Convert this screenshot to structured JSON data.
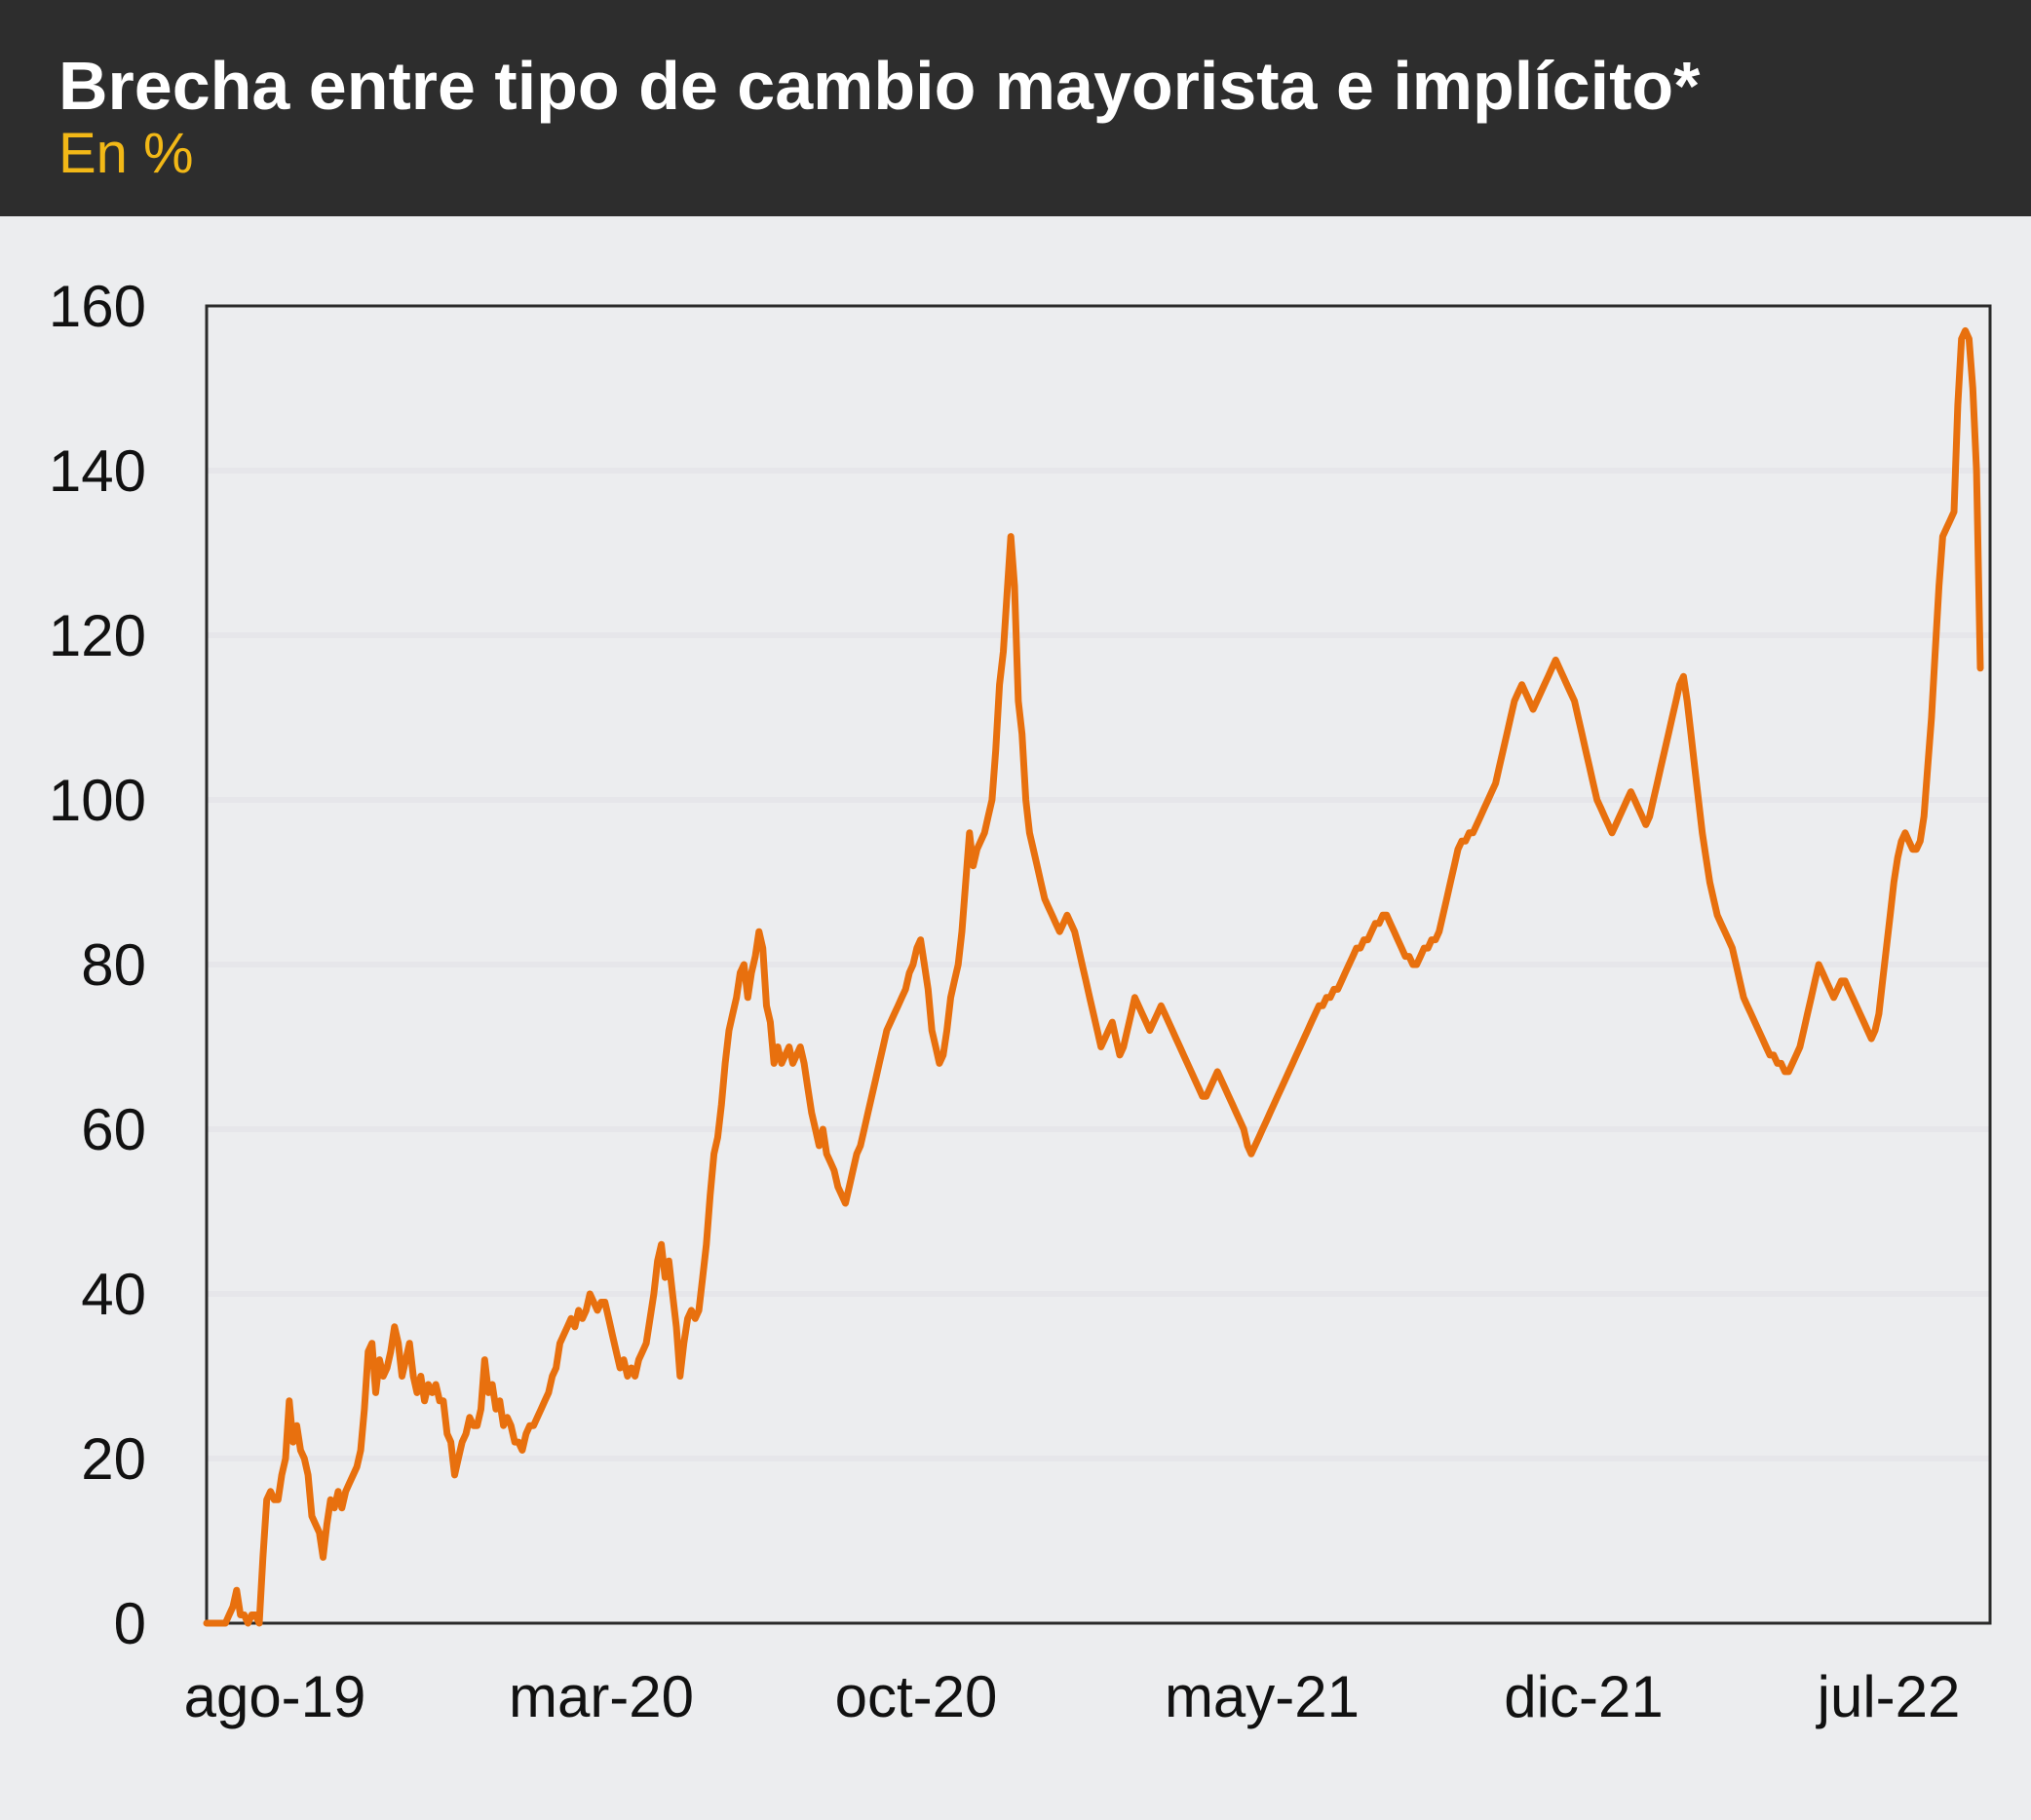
{
  "header": {
    "title": "Brecha entre tipo de cambio mayorista e implícito*",
    "subtitle": "En %"
  },
  "colors": {
    "line": "#e8700e",
    "header_bg": "#2d2d2d",
    "subtitle": "#f2b817",
    "background": "#ecedef",
    "grid": "#e6e6ea"
  },
  "chart_data": {
    "type": "line",
    "title": "Brecha entre tipo de cambio mayorista e implícito*",
    "subtitle": "En %",
    "xlabel": "",
    "ylabel": "",
    "xticks": [
      "ago-19",
      "mar-20",
      "oct-20",
      "may-21",
      "dic-21",
      "jul-22"
    ],
    "yticks": [
      0,
      20,
      40,
      60,
      80,
      100,
      120,
      140,
      160
    ],
    "ylim": [
      0,
      160
    ],
    "grid": "horizontal",
    "legend": "none",
    "series": [
      {
        "values": [
          0,
          0,
          0,
          0,
          0,
          0,
          1,
          2,
          4,
          1,
          1,
          0,
          1,
          1,
          0,
          8,
          15,
          16,
          15,
          15,
          18,
          20,
          27,
          22,
          24,
          21,
          20,
          18,
          13,
          12,
          11,
          8,
          12,
          15,
          14,
          16,
          14,
          16,
          17,
          18,
          19,
          21,
          26,
          33,
          34,
          28,
          32,
          30,
          31,
          33,
          36,
          34,
          30,
          32,
          34,
          30,
          28,
          30,
          27,
          29,
          28,
          29,
          27,
          27,
          23,
          22,
          18,
          20,
          22,
          23,
          25,
          24,
          24,
          26,
          32,
          28,
          29,
          26,
          27,
          24,
          25,
          24,
          22,
          22,
          21,
          23,
          24,
          24,
          25,
          26,
          27,
          28,
          30,
          31,
          34,
          35,
          36,
          37,
          36,
          38,
          37,
          38,
          40,
          39,
          38,
          39,
          39,
          37,
          35,
          33,
          31,
          32,
          30,
          31,
          30,
          32,
          33,
          34,
          37,
          40,
          44,
          46,
          42,
          44,
          40,
          36,
          30,
          34,
          37,
          38,
          37,
          38,
          42,
          46,
          52,
          57,
          59,
          63,
          68,
          72,
          74,
          76,
          79,
          80,
          76,
          79,
          81,
          84,
          82,
          75,
          73,
          68,
          70,
          68,
          69,
          70,
          68,
          69,
          70,
          68,
          65,
          62,
          60,
          58,
          60,
          57,
          56,
          55,
          53,
          52,
          51,
          53,
          55,
          57,
          58,
          60,
          62,
          64,
          66,
          68,
          70,
          72,
          73,
          74,
          75,
          76,
          77,
          79,
          80,
          82,
          83,
          80,
          77,
          72,
          70,
          68,
          69,
          72,
          76,
          78,
          80,
          84,
          90,
          96,
          92,
          94,
          95,
          96,
          98,
          100,
          106,
          114,
          118,
          125,
          132,
          126,
          112,
          108,
          100,
          96,
          94,
          92,
          90,
          88,
          87,
          86,
          85,
          84,
          85,
          86,
          85,
          84,
          82,
          80,
          78,
          76,
          74,
          72,
          70,
          71,
          72,
          73,
          71,
          69,
          70,
          72,
          74,
          76,
          75,
          74,
          73,
          72,
          73,
          74,
          75,
          74,
          73,
          72,
          71,
          70,
          69,
          68,
          67,
          66,
          65,
          64,
          64,
          65,
          66,
          67,
          66,
          65,
          64,
          63,
          62,
          61,
          60,
          58,
          57,
          58,
          59,
          60,
          61,
          62,
          63,
          64,
          65,
          66,
          67,
          68,
          69,
          70,
          71,
          72,
          73,
          74,
          75,
          75,
          76,
          76,
          77,
          77,
          78,
          79,
          80,
          81,
          82,
          82,
          83,
          83,
          84,
          85,
          85,
          86,
          86,
          85,
          84,
          83,
          82,
          81,
          81,
          80,
          80,
          81,
          82,
          82,
          83,
          83,
          84,
          86,
          88,
          90,
          92,
          94,
          95,
          95,
          96,
          96,
          97,
          98,
          99,
          100,
          101,
          102,
          104,
          106,
          108,
          110,
          112,
          113,
          114,
          113,
          112,
          111,
          112,
          113,
          114,
          115,
          116,
          117,
          116,
          115,
          114,
          113,
          112,
          110,
          108,
          106,
          104,
          102,
          100,
          99,
          98,
          97,
          96,
          97,
          98,
          99,
          100,
          101,
          100,
          99,
          98,
          97,
          98,
          100,
          102,
          104,
          106,
          108,
          110,
          112,
          114,
          115,
          112,
          108,
          104,
          100,
          96,
          93,
          90,
          88,
          86,
          85,
          84,
          83,
          82,
          80,
          78,
          76,
          75,
          74,
          73,
          72,
          71,
          70,
          69,
          69,
          68,
          68,
          67,
          67,
          68,
          69,
          70,
          72,
          74,
          76,
          78,
          80,
          79,
          78,
          77,
          76,
          77,
          78,
          78,
          77,
          76,
          75,
          74,
          73,
          72,
          71,
          72,
          74,
          78,
          82,
          86,
          90,
          93,
          95,
          96,
          95,
          94,
          94,
          95,
          98,
          104,
          110,
          118,
          126,
          132,
          133,
          134,
          135,
          148,
          156,
          157,
          156,
          150,
          140,
          116
        ]
      }
    ]
  }
}
